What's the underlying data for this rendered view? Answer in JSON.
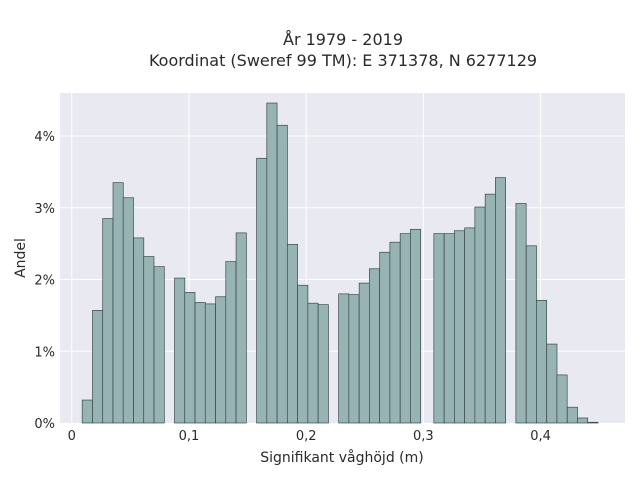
{
  "chart_data": {
    "type": "bar",
    "title_line1": "År 1979 - 2019",
    "title_line2": "Koordinat (Sweref 99 TM): E 371378, N 6277129",
    "xlabel": "Signifikant våghöjd (m)",
    "ylabel": "Andel",
    "xlim": [
      -0.01,
      0.472
    ],
    "ylim": [
      0,
      4.6
    ],
    "bin_width": 0.00875,
    "x_ticks": [
      {
        "value": 0,
        "label": "0"
      },
      {
        "value": 0.1,
        "label": "0,1"
      },
      {
        "value": 0.2,
        "label": "0,2"
      },
      {
        "value": 0.3,
        "label": "0,3"
      },
      {
        "value": 0.4,
        "label": "0,4"
      }
    ],
    "y_ticks": [
      {
        "value": 0,
        "label": "0%"
      },
      {
        "value": 1,
        "label": "1%"
      },
      {
        "value": 2,
        "label": "2%"
      },
      {
        "value": 3,
        "label": "3%"
      },
      {
        "value": 4,
        "label": "4%"
      }
    ],
    "x": [
      0.0133,
      0.0221,
      0.0308,
      0.0396,
      0.0483,
      0.0571,
      0.0658,
      0.0746,
      0.0921,
      0.1008,
      0.1096,
      0.1183,
      0.1271,
      0.1358,
      0.1446,
      0.1621,
      0.1708,
      0.1796,
      0.1883,
      0.1971,
      0.2058,
      0.2146,
      0.2321,
      0.2408,
      0.2496,
      0.2583,
      0.2671,
      0.2758,
      0.2846,
      0.2933,
      0.3133,
      0.3221,
      0.3308,
      0.3396,
      0.3483,
      0.3571,
      0.3658,
      0.3833,
      0.3921,
      0.4008,
      0.4096,
      0.4183,
      0.4271,
      0.4358,
      0.4446
    ],
    "values": [
      0.32,
      1.57,
      2.85,
      3.35,
      3.14,
      2.58,
      2.32,
      2.18,
      2.02,
      1.82,
      1.68,
      1.66,
      1.76,
      2.25,
      2.65,
      3.69,
      4.46,
      4.15,
      2.49,
      1.92,
      1.67,
      1.65,
      1.8,
      1.79,
      1.95,
      2.15,
      2.38,
      2.52,
      2.64,
      2.7,
      2.64,
      2.64,
      2.68,
      2.72,
      3.01,
      3.19,
      3.42,
      3.06,
      2.47,
      1.71,
      1.1,
      0.67,
      0.22,
      0.07,
      0.01
    ],
    "grid": true,
    "legend": "none",
    "colors": {
      "bar_fill": "#98b3b3",
      "bar_stroke": "#3a4a4a",
      "plot_bg": "#e9e9f1",
      "grid": "#ffffff"
    }
  }
}
